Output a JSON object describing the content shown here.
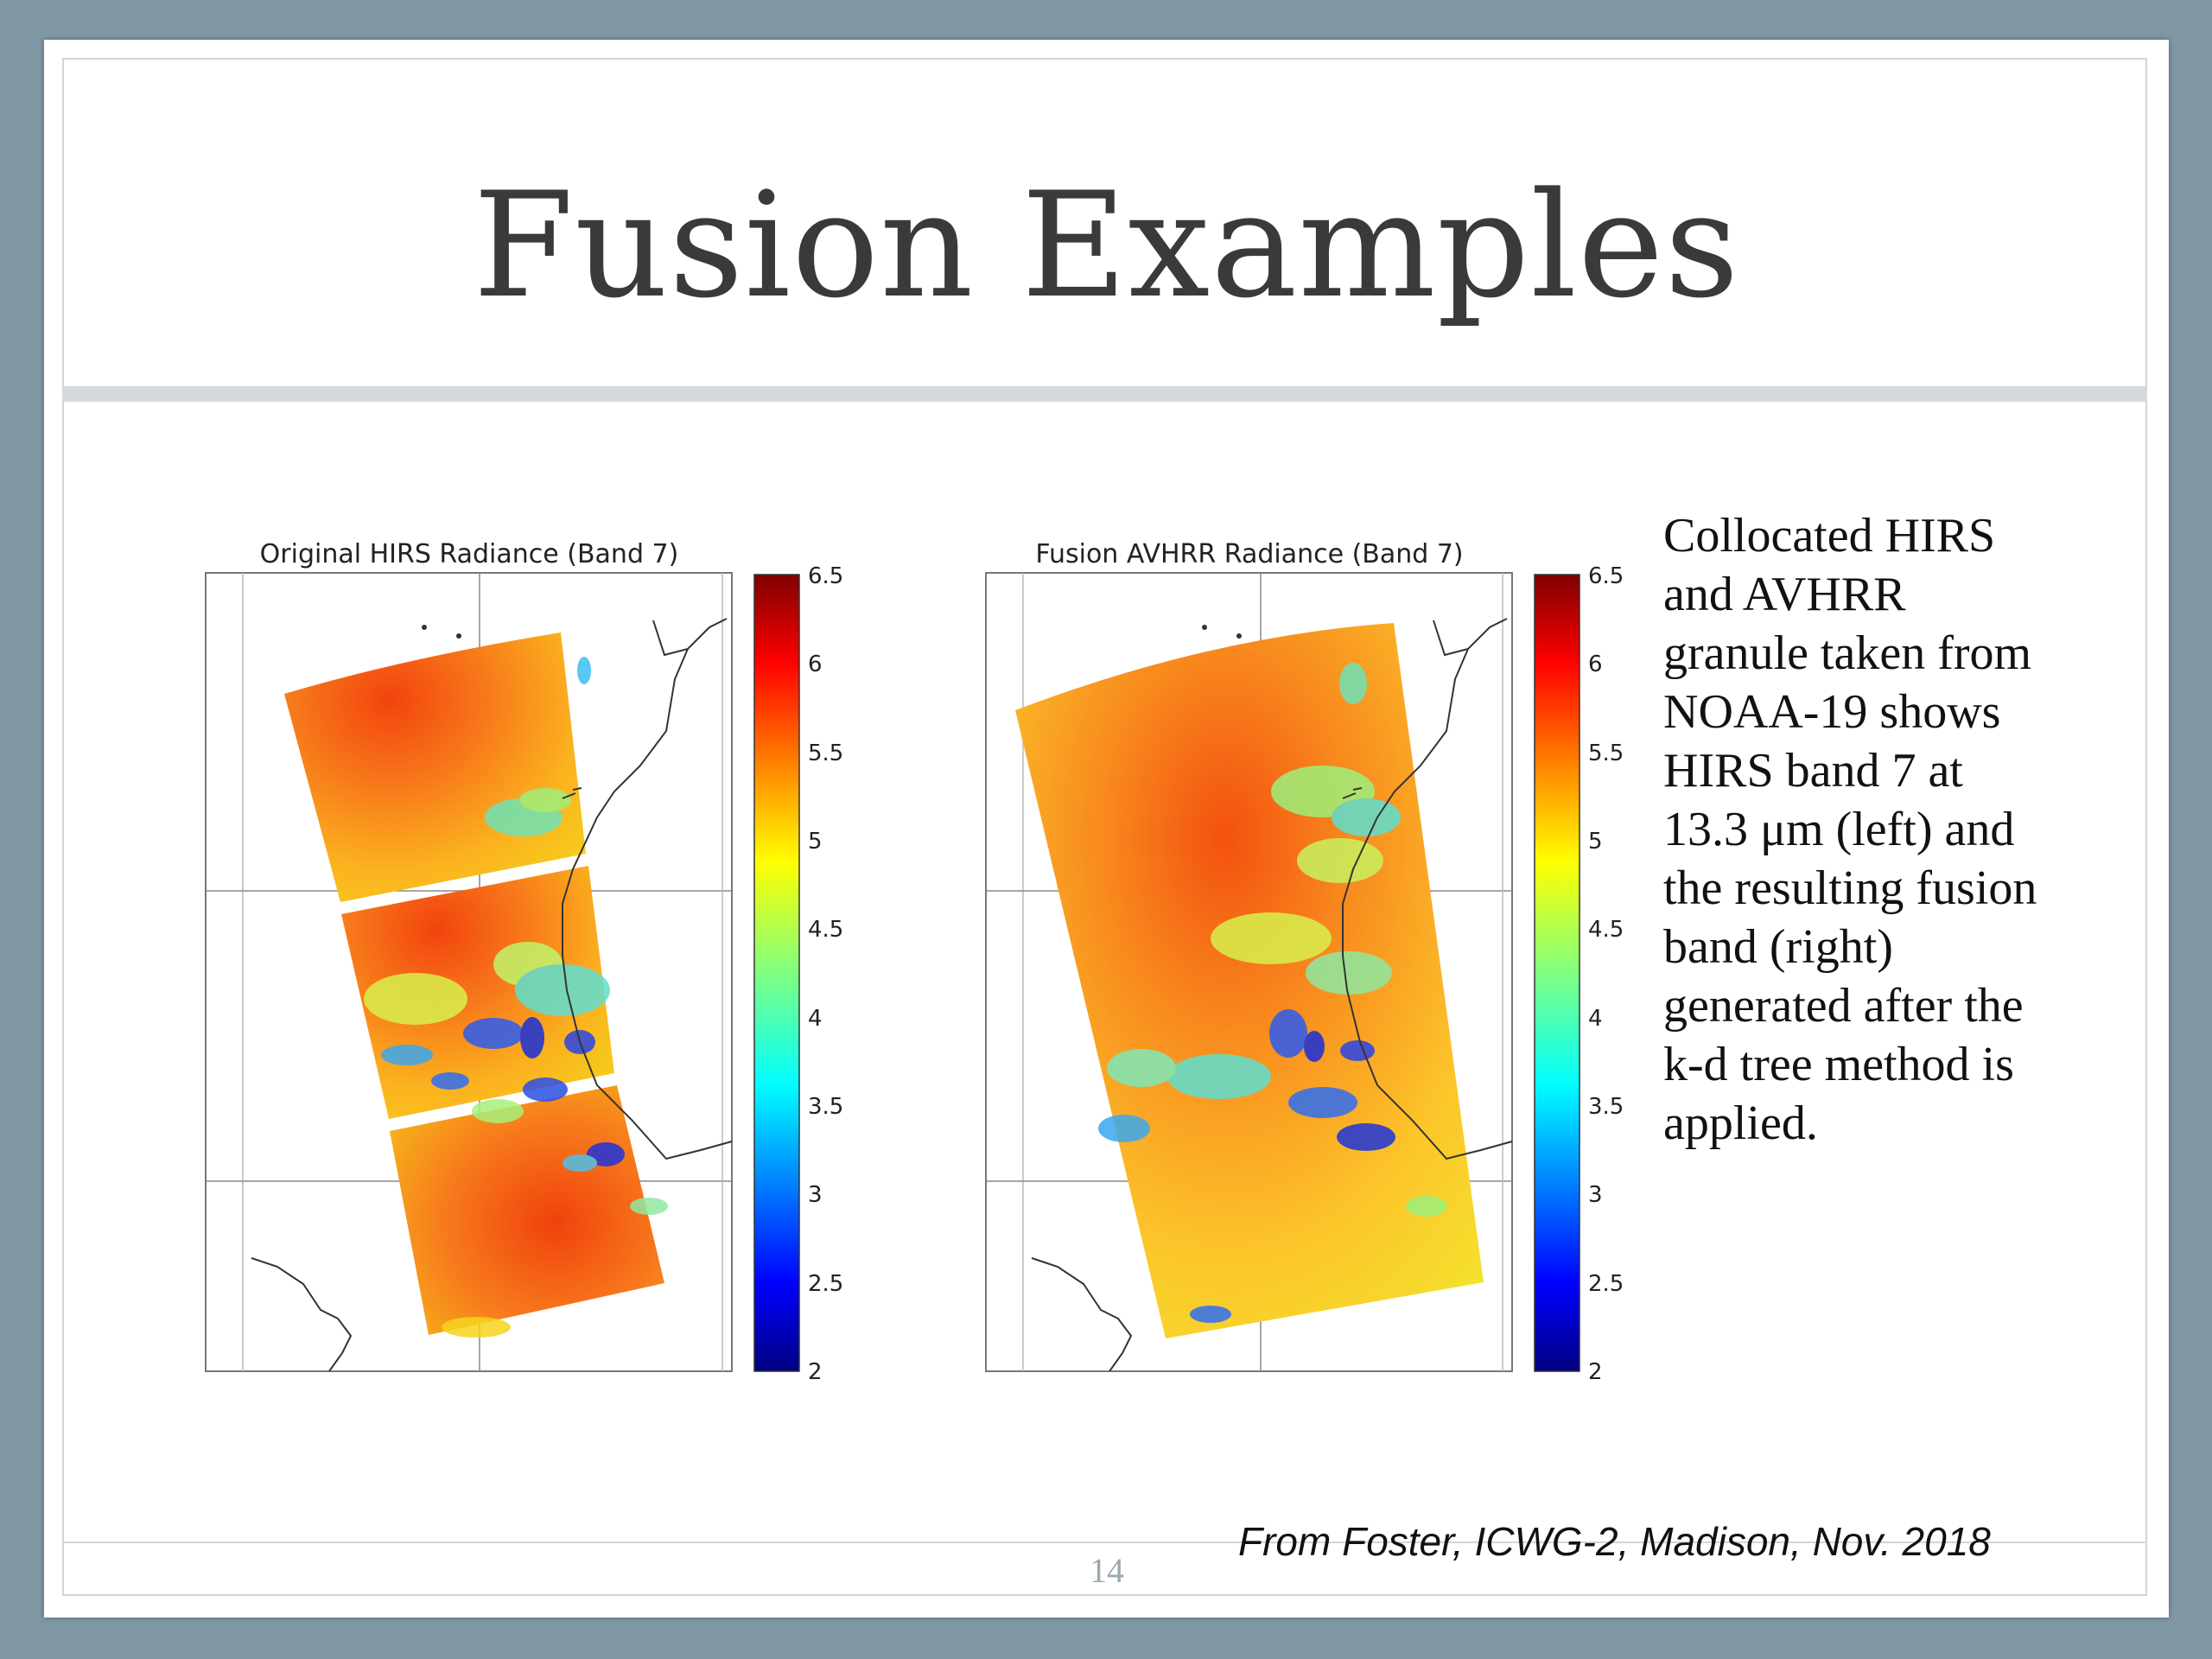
{
  "slide": {
    "title": "Fusion Examples",
    "page_number": "14",
    "citation": "From Foster, ICWG-2, Madison, Nov. 2018",
    "description_lines": [
      "Collocated HIRS",
      "and AVHRR",
      "granule taken from",
      "NOAA-19 shows",
      "HIRS band 7 at",
      "13.3 μm (left) and",
      "the resulting fusion",
      "band (right)",
      "generated after the",
      "k-d tree method is",
      "applied."
    ]
  },
  "figures": [
    {
      "title": "Original HIRS Radiance (Band 7)",
      "colorbar": {
        "ticks": [
          "6.5",
          "6",
          "5.5",
          "5",
          "4.5",
          "4",
          "3.5",
          "3",
          "2.5",
          "2"
        ],
        "range": [
          2,
          6.5
        ]
      },
      "colormap": "jet"
    },
    {
      "title": "Fusion AVHRR Radiance (Band 7)",
      "colorbar": {
        "ticks": [
          "6.5",
          "6",
          "5.5",
          "5",
          "4.5",
          "4",
          "3.5",
          "3",
          "2.5",
          "2"
        ],
        "range": [
          2,
          6.5
        ]
      },
      "colormap": "jet"
    }
  ],
  "colors": {
    "background": "#7f98a4",
    "title_text": "#3a3a3a",
    "rule": "#d3dadc",
    "page_number": "#9aa8b0"
  }
}
